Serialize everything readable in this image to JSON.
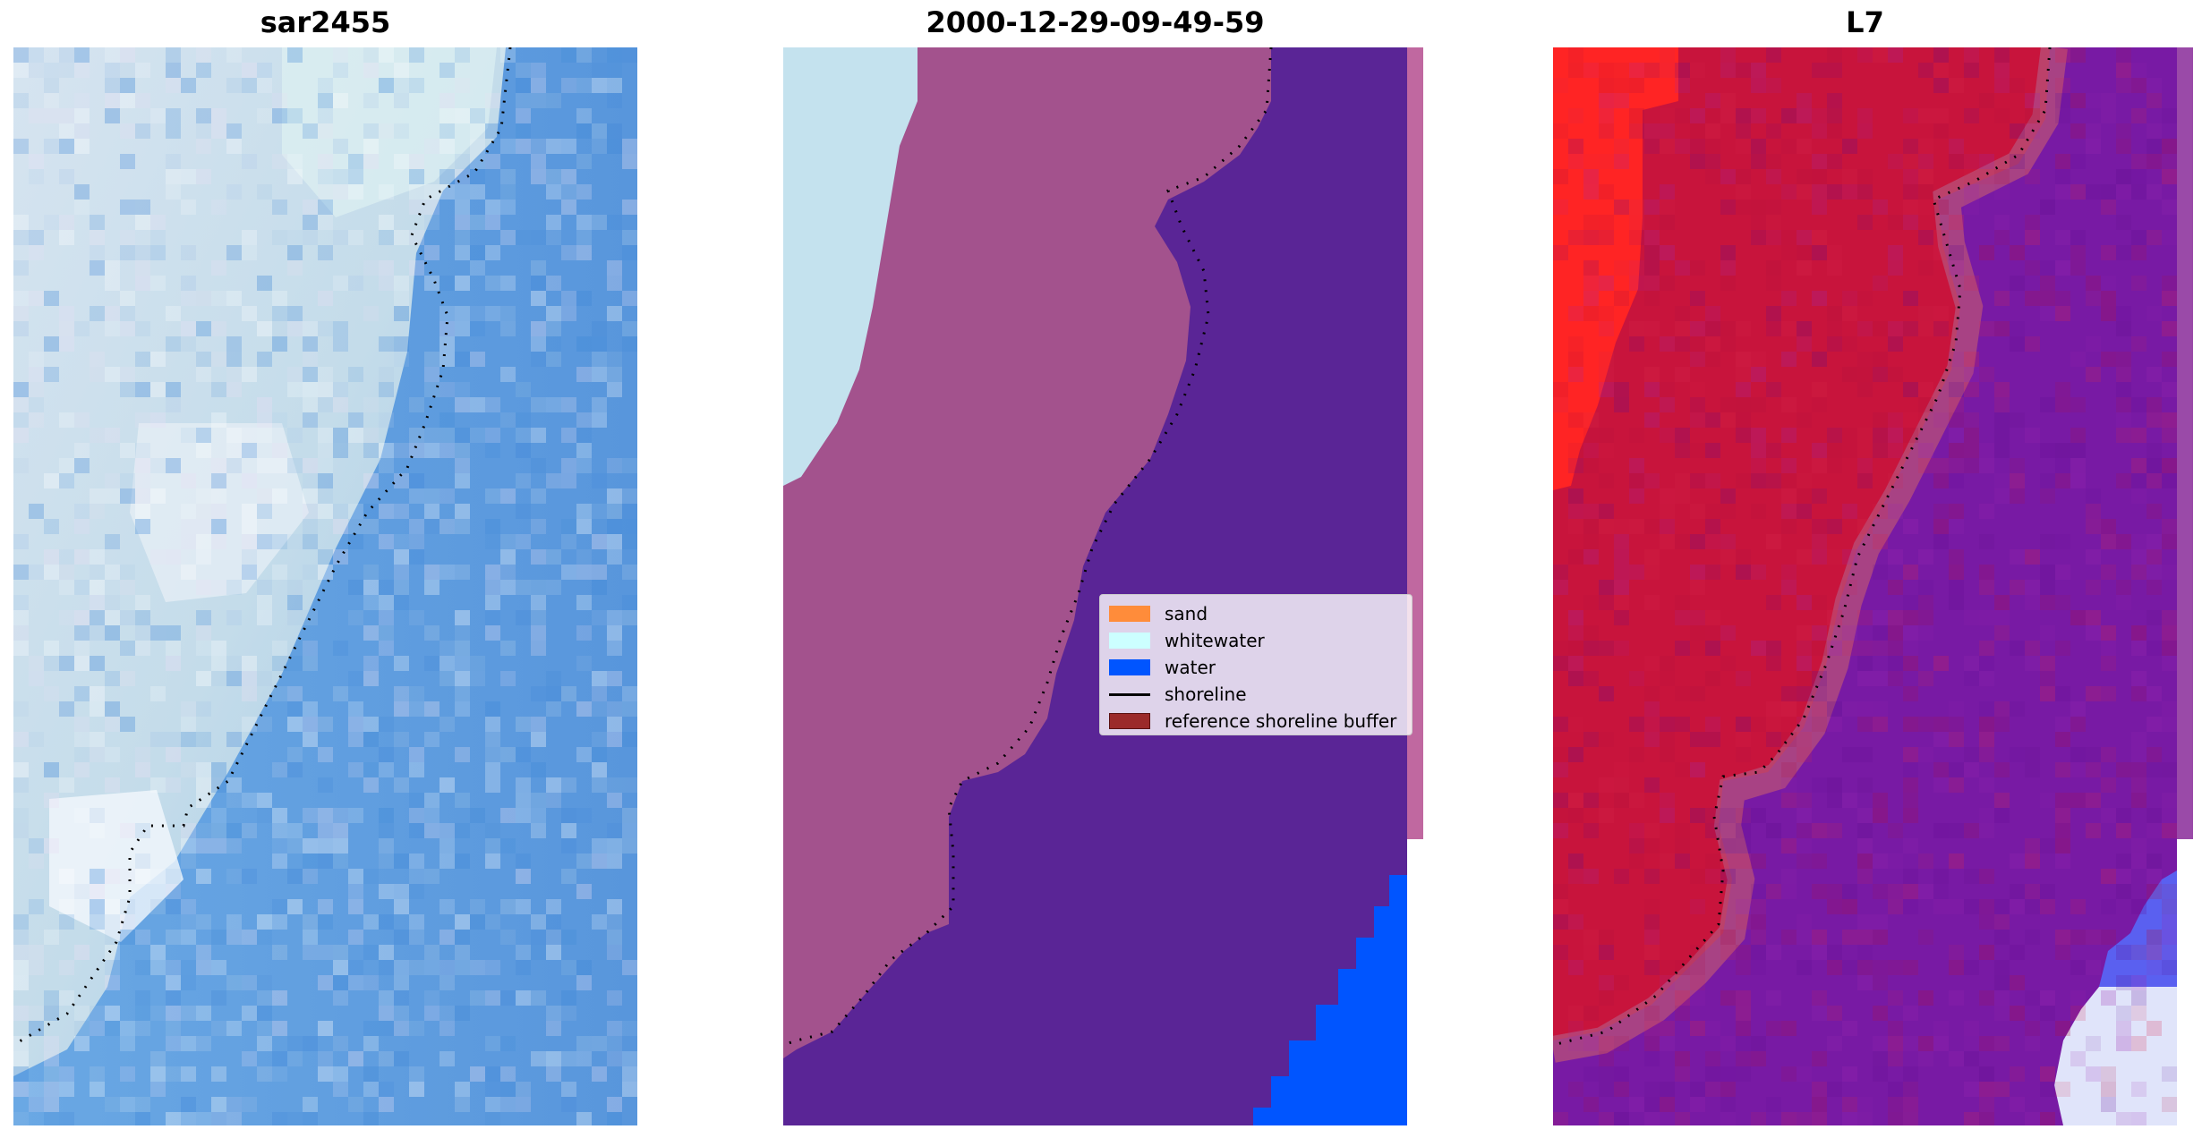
{
  "panels": [
    {
      "title": "sar2455"
    },
    {
      "title": "2000-12-29-09-49-59"
    },
    {
      "title": "L7"
    }
  ],
  "legend": {
    "items": [
      {
        "label": "sand",
        "color": "#ff8c3a",
        "kind": "patch"
      },
      {
        "label": "whitewater",
        "color": "#ccffff",
        "kind": "patch"
      },
      {
        "label": "water",
        "color": "#0055ff",
        "kind": "patch"
      },
      {
        "label": "shoreline",
        "color": "#000000",
        "kind": "line"
      },
      {
        "label": "reference shoreline buffer",
        "color": "#9b2a2a",
        "kind": "patch"
      }
    ]
  },
  "colors": {
    "rgb_land": "#c8dcea",
    "rgb_water": "#5a9ee6",
    "classified_land": "#a0508c",
    "classified_sea": "#5a2596",
    "classified_whitewater": "#c4e2ee",
    "classified_water": "#0055ff",
    "nir_land": "#c8143c",
    "nir_bright": "#ff2020",
    "nir_water": "#7a1aa6",
    "shoreline": "#000000"
  }
}
